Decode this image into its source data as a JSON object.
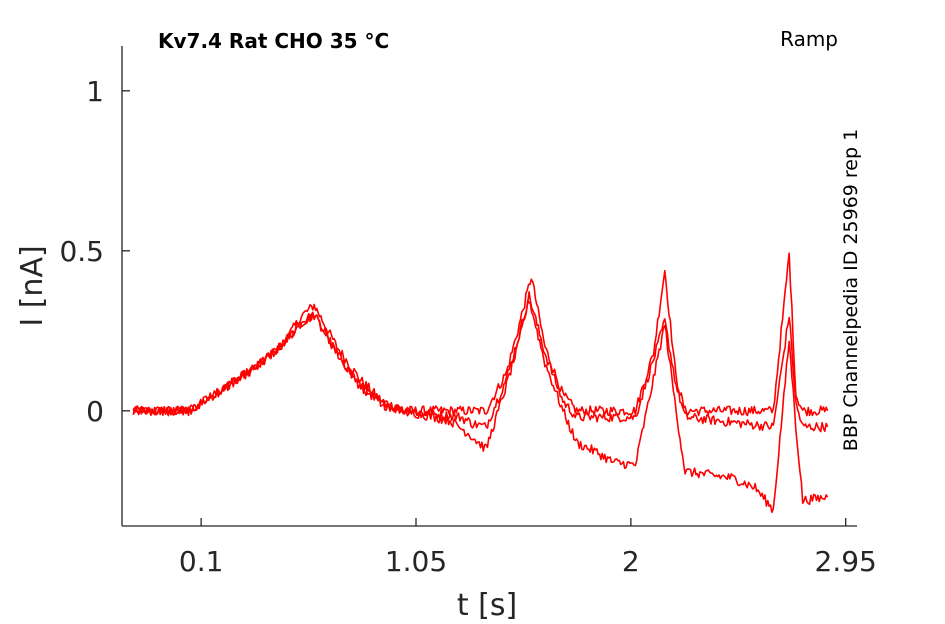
{
  "chart_data": {
    "type": "line",
    "title": "Kv7.4  Rat  CHO  35 °C",
    "protocol_label": "Ramp",
    "source_label": "BBP Channelpedia ID 25969 rep 1",
    "xlabel": "t [s]",
    "ylabel": "I [nA]",
    "xlim": [
      -0.25,
      3.0
    ],
    "ylim": [
      -0.36,
      1.14
    ],
    "x_ticks": [
      0.1,
      1.05,
      2,
      2.95
    ],
    "x_tick_labels": [
      "0.1",
      "1.05",
      "2",
      "2.95"
    ],
    "y_ticks": [
      0,
      0.5,
      1
    ],
    "y_tick_labels": [
      "0",
      "0.5",
      "1"
    ],
    "grid": false,
    "color": "#ff0000",
    "series": [
      {
        "points": [
          [
            -0.2,
            0.0
          ],
          [
            0.05,
            0.0
          ],
          [
            0.35,
            0.14
          ],
          [
            0.45,
            0.2
          ],
          [
            0.55,
            0.3
          ],
          [
            0.6,
            0.33
          ],
          [
            0.7,
            0.2
          ],
          [
            0.8,
            0.1
          ],
          [
            0.9,
            0.03
          ],
          [
            1.0,
            0.0
          ],
          [
            1.3,
            0.0
          ],
          [
            1.36,
            0.0
          ],
          [
            1.45,
            0.12
          ],
          [
            1.5,
            0.25
          ],
          [
            1.56,
            0.42
          ],
          [
            1.62,
            0.2
          ],
          [
            1.7,
            0.05
          ],
          [
            1.76,
            0.0
          ],
          [
            2.02,
            0.0
          ],
          [
            2.1,
            0.18
          ],
          [
            2.15,
            0.44
          ],
          [
            2.2,
            0.1
          ],
          [
            2.24,
            0.0
          ],
          [
            2.63,
            0.0
          ],
          [
            2.7,
            0.49
          ],
          [
            2.73,
            0.05
          ],
          [
            2.76,
            0.0
          ],
          [
            2.87,
            0.0
          ]
        ]
      },
      {
        "points": [
          [
            -0.2,
            0.0
          ],
          [
            0.05,
            0.0
          ],
          [
            0.35,
            0.14
          ],
          [
            0.45,
            0.2
          ],
          [
            0.55,
            0.28
          ],
          [
            0.6,
            0.3
          ],
          [
            0.7,
            0.18
          ],
          [
            0.8,
            0.08
          ],
          [
            0.9,
            0.02
          ],
          [
            1.0,
            0.0
          ],
          [
            1.25,
            -0.02
          ],
          [
            1.3,
            -0.04
          ],
          [
            1.36,
            -0.05
          ],
          [
            1.45,
            0.1
          ],
          [
            1.5,
            0.22
          ],
          [
            1.55,
            0.36
          ],
          [
            1.62,
            0.18
          ],
          [
            1.7,
            0.03
          ],
          [
            1.76,
            -0.02
          ],
          [
            2.02,
            -0.02
          ],
          [
            2.1,
            0.16
          ],
          [
            2.15,
            0.28
          ],
          [
            2.2,
            0.08
          ],
          [
            2.24,
            -0.02
          ],
          [
            2.63,
            -0.05
          ],
          [
            2.7,
            0.3
          ],
          [
            2.73,
            0.02
          ],
          [
            2.76,
            -0.05
          ],
          [
            2.87,
            -0.05
          ]
        ]
      },
      {
        "points": [
          [
            -0.2,
            0.0
          ],
          [
            0.05,
            0.0
          ],
          [
            0.35,
            0.14
          ],
          [
            0.45,
            0.2
          ],
          [
            0.55,
            0.28
          ],
          [
            0.6,
            0.3
          ],
          [
            0.7,
            0.18
          ],
          [
            0.8,
            0.08
          ],
          [
            0.9,
            0.02
          ],
          [
            1.0,
            0.0
          ],
          [
            1.2,
            -0.03
          ],
          [
            1.28,
            -0.07
          ],
          [
            1.36,
            -0.12
          ],
          [
            1.45,
            0.08
          ],
          [
            1.5,
            0.2
          ],
          [
            1.55,
            0.35
          ],
          [
            1.62,
            0.15
          ],
          [
            1.7,
            0.0
          ],
          [
            1.76,
            -0.1
          ],
          [
            1.85,
            -0.13
          ],
          [
            1.92,
            -0.16
          ],
          [
            2.02,
            -0.17
          ],
          [
            2.1,
            0.1
          ],
          [
            2.15,
            0.27
          ],
          [
            2.2,
            0.0
          ],
          [
            2.24,
            -0.19
          ],
          [
            2.45,
            -0.21
          ],
          [
            2.55,
            -0.24
          ],
          [
            2.63,
            -0.31
          ],
          [
            2.7,
            0.22
          ],
          [
            2.73,
            -0.05
          ],
          [
            2.76,
            -0.28
          ],
          [
            2.87,
            -0.27
          ]
        ]
      }
    ]
  }
}
